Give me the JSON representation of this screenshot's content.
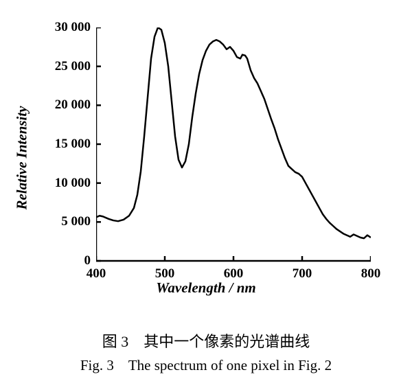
{
  "chart": {
    "type": "line",
    "xlim": [
      400,
      800
    ],
    "ylim": [
      0,
      30000
    ],
    "xtick_step": 100,
    "ytick_step": 5000,
    "xticks": [
      400,
      500,
      600,
      700,
      800
    ],
    "yticks": [
      0,
      5000,
      10000,
      15000,
      20000,
      25000,
      30000
    ],
    "ytick_labels": [
      "0",
      "5 000",
      "10 000",
      "15 000",
      "20 000",
      "25 000",
      "30 000"
    ],
    "xtick_labels": [
      "400",
      "500",
      "600",
      "700",
      "800"
    ],
    "xlabel": "Wavelength / nm",
    "ylabel": "Relative Intensity",
    "line_color": "#000000",
    "line_width": 2.5,
    "axis_color": "#000000",
    "axis_width": 2.5,
    "background_color": "#ffffff",
    "tick_length": 7,
    "label_fontsize": 21,
    "tick_fontsize": 19,
    "data": [
      [
        400,
        5600
      ],
      [
        405,
        5800
      ],
      [
        410,
        5700
      ],
      [
        418,
        5400
      ],
      [
        425,
        5200
      ],
      [
        432,
        5100
      ],
      [
        440,
        5300
      ],
      [
        448,
        5800
      ],
      [
        455,
        6800
      ],
      [
        460,
        8500
      ],
      [
        465,
        11500
      ],
      [
        470,
        16000
      ],
      [
        475,
        21000
      ],
      [
        480,
        26000
      ],
      [
        485,
        28800
      ],
      [
        490,
        30000
      ],
      [
        495,
        29700
      ],
      [
        500,
        28000
      ],
      [
        505,
        25000
      ],
      [
        510,
        20500
      ],
      [
        515,
        16000
      ],
      [
        520,
        13000
      ],
      [
        525,
        12000
      ],
      [
        530,
        12800
      ],
      [
        535,
        15000
      ],
      [
        540,
        18500
      ],
      [
        545,
        21500
      ],
      [
        550,
        24000
      ],
      [
        555,
        25800
      ],
      [
        560,
        27000
      ],
      [
        565,
        27800
      ],
      [
        570,
        28200
      ],
      [
        575,
        28400
      ],
      [
        580,
        28200
      ],
      [
        585,
        27800
      ],
      [
        590,
        27200
      ],
      [
        595,
        27500
      ],
      [
        600,
        27000
      ],
      [
        605,
        26200
      ],
      [
        610,
        26000
      ],
      [
        613,
        26500
      ],
      [
        617,
        26400
      ],
      [
        620,
        26000
      ],
      [
        625,
        24500
      ],
      [
        630,
        23500
      ],
      [
        635,
        22800
      ],
      [
        640,
        21800
      ],
      [
        645,
        20800
      ],
      [
        650,
        19500
      ],
      [
        655,
        18200
      ],
      [
        660,
        17000
      ],
      [
        665,
        15600
      ],
      [
        670,
        14400
      ],
      [
        675,
        13200
      ],
      [
        680,
        12200
      ],
      [
        685,
        11800
      ],
      [
        690,
        11400
      ],
      [
        695,
        11200
      ],
      [
        700,
        10800
      ],
      [
        705,
        10000
      ],
      [
        710,
        9200
      ],
      [
        715,
        8400
      ],
      [
        720,
        7600
      ],
      [
        725,
        6800
      ],
      [
        730,
        6000
      ],
      [
        735,
        5400
      ],
      [
        740,
        4900
      ],
      [
        745,
        4500
      ],
      [
        750,
        4100
      ],
      [
        755,
        3800
      ],
      [
        760,
        3500
      ],
      [
        765,
        3300
      ],
      [
        770,
        3100
      ],
      [
        775,
        3400
      ],
      [
        780,
        3200
      ],
      [
        785,
        3000
      ],
      [
        790,
        2900
      ],
      [
        795,
        3300
      ],
      [
        800,
        3000
      ]
    ]
  },
  "caption_cn": "图 3　其中一个像素的光谱曲线",
  "caption_en": "Fig. 3　The spectrum of one pixel in Fig. 2"
}
